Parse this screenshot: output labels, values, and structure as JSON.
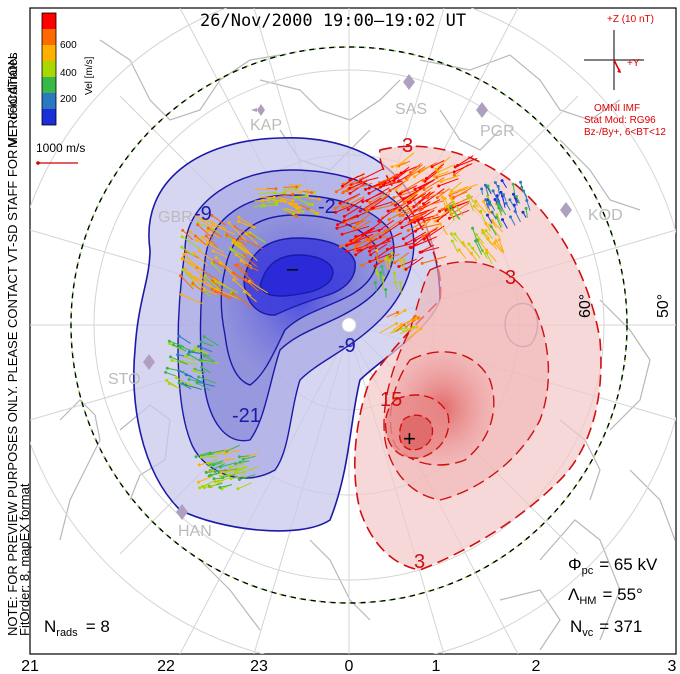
{
  "header": {
    "title": "26/Nov/2000  19:00–19:02  UT"
  },
  "left_notes": {
    "coords": "MLT coordinates",
    "preview": "NOTE: FOR PREVIEW PURPOSES ONLY.  PLEASE CONTACT VT-SD STAFF FOR VERIFICATION.",
    "fit": "FitOrder: 8,  mapEX format"
  },
  "velocity_scale": {
    "title": "Vel [m/s]",
    "ticks": [
      "600",
      "400",
      "200"
    ],
    "colors": [
      "#ff0000",
      "#ff6a00",
      "#ffb000",
      "#a8d800",
      "#38b848",
      "#2a78c0",
      "#1a2fd8"
    ],
    "vector_label": "1000 m/s"
  },
  "imf": {
    "z_label": "+Z (10 nT)",
    "y_label": "+Y",
    "source": "OMNI IMF",
    "model": "Stat Mod: RG96",
    "condition": "Bz-/By+, 6<BT<12",
    "color": "#e00000"
  },
  "stations": [
    {
      "name": "KAP"
    },
    {
      "name": "SAS"
    },
    {
      "name": "PGR"
    },
    {
      "name": "KOD"
    },
    {
      "name": "GBR"
    },
    {
      "name": "STO"
    },
    {
      "name": "HAN"
    }
  ],
  "latitude_labels": [
    "60°",
    "50°"
  ],
  "mlt_labels": [
    "21",
    "22",
    "23",
    "0",
    "1",
    "2",
    "3"
  ],
  "contours": {
    "negative_labels": [
      "-9",
      "-2",
      "-9",
      "-21"
    ],
    "positive_labels": [
      "3",
      "3",
      "15",
      "3"
    ],
    "min_marker": "–",
    "max_marker": "+",
    "neg_color": "#1a1aa8",
    "pos_color": "#d01010"
  },
  "stats": {
    "phi_symbol": "Φ",
    "phi_sub": "pc",
    "phi_value": "= 65 kV",
    "lambda_symbol": "Λ",
    "lambda_sub": "HM",
    "lambda_value": "= 55°",
    "nvc_symbol": "N",
    "nvc_sub": "vc",
    "nvc_value": "= 371"
  },
  "nrads": {
    "symbol": "N",
    "sub": "rads",
    "value": "= 8"
  }
}
